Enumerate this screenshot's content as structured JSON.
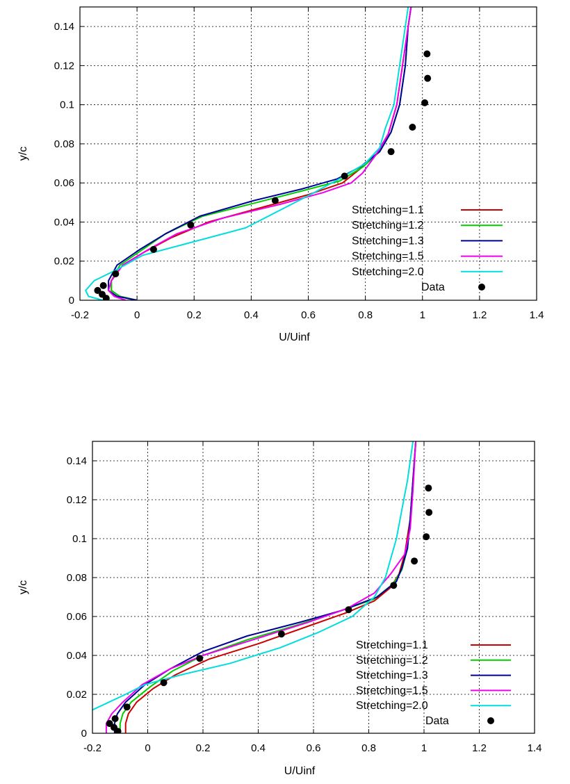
{
  "chart_data": [
    {
      "type": "line",
      "title": "",
      "xlabel": "U/Uinf",
      "ylabel": "y/c",
      "xlim": [
        -0.2,
        1.4
      ],
      "ylim": [
        0,
        0.15
      ],
      "xticks": [
        "-0.2",
        "0",
        "0.2",
        "0.4",
        "0.6",
        "0.8",
        "1",
        "1.2",
        "1.4"
      ],
      "yticks": [
        "0",
        "0.02",
        "0.04",
        "0.06",
        "0.08",
        "0.1",
        "0.12",
        "0.14"
      ],
      "grid": true,
      "legend_position": "bottom-right",
      "colors": {
        "Stretching=1.1": "#cc0000",
        "Stretching=1.2": "#00cc00",
        "Stretching=1.3": "#000099",
        "Stretching=1.5": "#ee00ee",
        "Stretching=2.0": "#00dddd",
        "Data": "#000000"
      },
      "series": [
        {
          "name": "Stretching=1.1",
          "x": [
            0.0,
            -0.06,
            -0.09,
            -0.09,
            -0.05,
            0.03,
            0.12,
            0.25,
            0.45,
            0.6,
            0.72,
            0.78,
            0.84,
            0.88,
            0.91,
            0.93,
            0.95,
            0.96
          ],
          "y": [
            0.0,
            0.002,
            0.005,
            0.01,
            0.018,
            0.025,
            0.032,
            0.04,
            0.048,
            0.054,
            0.06,
            0.067,
            0.075,
            0.085,
            0.1,
            0.12,
            0.14,
            0.15
          ]
        },
        {
          "name": "Stretching=1.2",
          "x": [
            0.0,
            -0.06,
            -0.09,
            -0.09,
            -0.06,
            0.02,
            0.1,
            0.23,
            0.42,
            0.58,
            0.71,
            0.79,
            0.85,
            0.89,
            0.92,
            0.94,
            0.95,
            0.96
          ],
          "y": [
            0.0,
            0.002,
            0.005,
            0.01,
            0.018,
            0.026,
            0.034,
            0.043,
            0.05,
            0.056,
            0.061,
            0.068,
            0.076,
            0.086,
            0.1,
            0.12,
            0.14,
            0.15
          ]
        },
        {
          "name": "Stretching=1.3",
          "x": [
            0.0,
            -0.07,
            -0.1,
            -0.1,
            -0.07,
            0.01,
            0.1,
            0.22,
            0.41,
            0.58,
            0.7,
            0.78,
            0.85,
            0.89,
            0.92,
            0.94,
            0.95,
            0.96
          ],
          "y": [
            0.0,
            0.002,
            0.005,
            0.01,
            0.018,
            0.026,
            0.034,
            0.043,
            0.051,
            0.057,
            0.062,
            0.068,
            0.076,
            0.086,
            0.1,
            0.12,
            0.14,
            0.15
          ]
        },
        {
          "name": "Stretching=1.5",
          "x": [
            -0.04,
            -0.08,
            -0.1,
            -0.09,
            -0.05,
            0.04,
            0.14,
            0.3,
            0.5,
            0.65,
            0.75,
            0.79,
            0.84,
            0.88,
            0.91,
            0.93,
            0.95,
            0.96
          ],
          "y": [
            0.0,
            0.002,
            0.005,
            0.01,
            0.018,
            0.026,
            0.034,
            0.042,
            0.049,
            0.055,
            0.06,
            0.065,
            0.075,
            0.085,
            0.1,
            0.12,
            0.14,
            0.15
          ]
        },
        {
          "name": "Stretching=2.0",
          "x": [
            -0.12,
            -0.17,
            -0.18,
            -0.15,
            -0.08,
            0.02,
            0.2,
            0.38,
            0.5,
            0.62,
            0.72,
            0.8,
            0.85,
            0.87,
            0.9,
            0.92,
            0.94,
            0.95
          ],
          "y": [
            0.0,
            0.002,
            0.005,
            0.01,
            0.015,
            0.023,
            0.03,
            0.037,
            0.046,
            0.055,
            0.063,
            0.07,
            0.078,
            0.088,
            0.1,
            0.12,
            0.14,
            0.15
          ]
        }
      ],
      "points": {
        "name": "Data",
        "x": [
          -0.108,
          -0.122,
          -0.138,
          -0.118,
          -0.075,
          0.058,
          0.188,
          0.484,
          0.727,
          0.89,
          0.965,
          1.008,
          1.018,
          1.016
        ],
        "y": [
          0.001,
          0.003,
          0.005,
          0.0075,
          0.0135,
          0.026,
          0.0385,
          0.051,
          0.0635,
          0.076,
          0.0885,
          0.101,
          0.1135,
          0.126
        ]
      }
    },
    {
      "type": "line",
      "title": "",
      "xlabel": "U/Uinf",
      "ylabel": "y/c",
      "xlim": [
        -0.2,
        1.4
      ],
      "ylim": [
        0,
        0.15
      ],
      "xticks": [
        "-0.2",
        "0",
        "0.2",
        "0.4",
        "0.6",
        "0.8",
        "1",
        "1.2",
        "1.4"
      ],
      "yticks": [
        "0",
        "0.02",
        "0.04",
        "0.06",
        "0.08",
        "0.1",
        "0.12",
        "0.14"
      ],
      "grid": true,
      "legend_position": "bottom-right",
      "colors": {
        "Stretching=1.1": "#cc0000",
        "Stretching=1.2": "#00cc00",
        "Stretching=1.3": "#000099",
        "Stretching=1.5": "#ee00ee",
        "Stretching=2.0": "#00dddd",
        "Data": "#000000"
      },
      "series": [
        {
          "name": "Stretching=1.1",
          "x": [
            -0.08,
            -0.08,
            -0.07,
            -0.04,
            0.02,
            0.1,
            0.22,
            0.4,
            0.58,
            0.72,
            0.82,
            0.88,
            0.91,
            0.93,
            0.95,
            0.96,
            0.97
          ],
          "y": [
            0.0,
            0.005,
            0.01,
            0.016,
            0.023,
            0.03,
            0.038,
            0.046,
            0.055,
            0.062,
            0.068,
            0.075,
            0.082,
            0.092,
            0.11,
            0.13,
            0.15
          ]
        },
        {
          "name": "Stretching=1.2",
          "x": [
            -0.1,
            -0.1,
            -0.09,
            -0.06,
            0.01,
            0.09,
            0.2,
            0.36,
            0.55,
            0.7,
            0.82,
            0.89,
            0.92,
            0.94,
            0.95,
            0.96,
            0.97
          ],
          "y": [
            0.0,
            0.005,
            0.01,
            0.016,
            0.024,
            0.032,
            0.04,
            0.048,
            0.056,
            0.063,
            0.069,
            0.077,
            0.084,
            0.095,
            0.11,
            0.13,
            0.15
          ]
        },
        {
          "name": "Stretching=1.3",
          "x": [
            -0.12,
            -0.12,
            -0.11,
            -0.08,
            -0.01,
            0.08,
            0.2,
            0.36,
            0.55,
            0.7,
            0.83,
            0.9,
            0.92,
            0.94,
            0.95,
            0.96,
            0.97
          ],
          "y": [
            0.0,
            0.005,
            0.01,
            0.016,
            0.025,
            0.033,
            0.042,
            0.05,
            0.057,
            0.063,
            0.07,
            0.078,
            0.085,
            0.095,
            0.11,
            0.13,
            0.15
          ]
        },
        {
          "name": "Stretching=1.5",
          "x": [
            -0.15,
            -0.15,
            -0.13,
            -0.09,
            -0.02,
            0.08,
            0.2,
            0.38,
            0.58,
            0.72,
            0.82,
            0.88,
            0.93,
            0.95,
            0.96,
            0.97
          ],
          "y": [
            0.0,
            0.005,
            0.01,
            0.016,
            0.025,
            0.033,
            0.04,
            0.048,
            0.057,
            0.064,
            0.072,
            0.082,
            0.092,
            0.105,
            0.125,
            0.15
          ]
        },
        {
          "name": "Stretching=2.0",
          "x": [
            -0.2,
            -0.14,
            -0.08,
            -0.01,
            0.12,
            0.3,
            0.48,
            0.62,
            0.74,
            0.82,
            0.86,
            0.88,
            0.9,
            0.92,
            0.94,
            0.96
          ],
          "y": [
            0.012,
            0.016,
            0.02,
            0.025,
            0.03,
            0.036,
            0.044,
            0.052,
            0.06,
            0.07,
            0.08,
            0.09,
            0.1,
            0.115,
            0.13,
            0.15
          ]
        }
      ],
      "points": {
        "name": "Data",
        "x": [
          -0.108,
          -0.122,
          -0.138,
          -0.118,
          -0.075,
          0.058,
          0.188,
          0.484,
          0.727,
          0.89,
          0.965,
          1.008,
          1.018,
          1.016
        ],
        "y": [
          0.001,
          0.003,
          0.005,
          0.0075,
          0.0135,
          0.026,
          0.0385,
          0.051,
          0.0635,
          0.076,
          0.0885,
          0.101,
          0.1135,
          0.126
        ]
      }
    }
  ]
}
